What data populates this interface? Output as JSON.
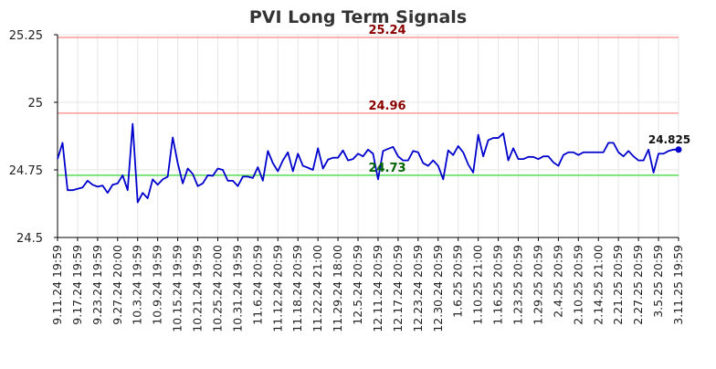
{
  "chart_data": {
    "type": "line",
    "title": "PVI Long Term Signals",
    "xlabel": "",
    "ylabel": "",
    "ylim": [
      24.5,
      25.25
    ],
    "yticks": [
      "24.5",
      "24.75",
      "25",
      "25.25"
    ],
    "grid": true,
    "xtick_labels": [
      "9.11.24 19:59",
      "9.17.24 19:59",
      "9.23.24 19:59",
      "9.27.24 20:00",
      "10.3.24 19:59",
      "10.9.24 19:59",
      "10.15.24 19:59",
      "10.21.24 19:59",
      "10.25.24 20:00",
      "10.31.24 19:59",
      "11.6.24 20:59",
      "11.12.24 20:59",
      "11.18.24 20:59",
      "11.22.24 21:00",
      "11.29.24 18:00",
      "12.5.24 20:59",
      "12.11.24 20:59",
      "12.17.24 20:59",
      "12.23.24 20:59",
      "12.30.24 20:59",
      "1.6.25 20:59",
      "1.10.25 21:00",
      "1.16.25 20:59",
      "1.23.25 20:59",
      "1.29.25 20:59",
      "2.4.25 20:59",
      "2.10.25 20:59",
      "2.14.25 21:00",
      "2.21.25 20:59",
      "2.27.25 20:59",
      "3.5.25 20:59",
      "3.11.25 19:59"
    ],
    "series": [
      {
        "values": [
          24.79,
          24.85,
          24.675,
          24.675,
          24.68,
          24.685,
          24.71,
          24.695,
          24.688,
          24.692,
          24.665,
          24.695,
          24.7,
          24.73,
          24.675,
          24.92,
          24.63,
          24.665,
          24.645,
          24.715,
          24.695,
          24.715,
          24.725,
          24.87,
          24.775,
          24.7,
          24.755,
          24.735,
          24.69,
          24.7,
          24.73,
          24.728,
          24.755,
          24.75,
          24.71,
          24.71,
          24.69,
          24.725,
          24.725,
          24.72,
          24.76,
          24.71,
          24.82,
          24.775,
          24.745,
          24.785,
          24.815,
          24.745,
          24.81,
          24.765,
          24.758,
          24.75,
          24.83,
          24.755,
          24.788,
          24.795,
          24.795,
          24.822,
          24.785,
          24.79,
          24.81,
          24.8,
          24.825,
          24.81,
          24.715,
          24.82,
          24.828,
          24.835,
          24.8,
          24.785,
          24.785,
          24.82,
          24.815,
          24.775,
          24.765,
          24.785,
          24.765,
          24.715,
          24.822,
          24.805,
          24.838,
          24.815,
          24.77,
          24.74,
          24.88,
          24.8,
          24.86,
          24.868,
          24.868,
          24.885,
          24.785,
          24.83,
          24.79,
          24.79,
          24.798,
          24.798,
          24.79,
          24.8,
          24.8,
          24.778,
          24.765,
          24.805,
          24.815,
          24.815,
          24.805,
          24.815,
          24.815,
          24.815,
          24.815,
          24.815,
          24.85,
          24.85,
          24.815,
          24.8,
          24.82,
          24.8,
          24.785,
          24.785,
          24.825,
          24.74,
          24.81,
          24.81,
          24.82,
          24.825,
          24.825
        ]
      }
    ],
    "reference_lines": [
      {
        "value": 25.24,
        "label": "25.24",
        "color": "#ff9999",
        "label_color": "#8b0000"
      },
      {
        "value": 24.96,
        "label": "24.96",
        "color": "#ff9999",
        "label_color": "#8b0000"
      },
      {
        "value": 24.73,
        "label": "24.73",
        "color": "#55dd55",
        "label_color": "#006400"
      }
    ],
    "last_value_label": "24.825",
    "line_color": "#0000cc"
  }
}
